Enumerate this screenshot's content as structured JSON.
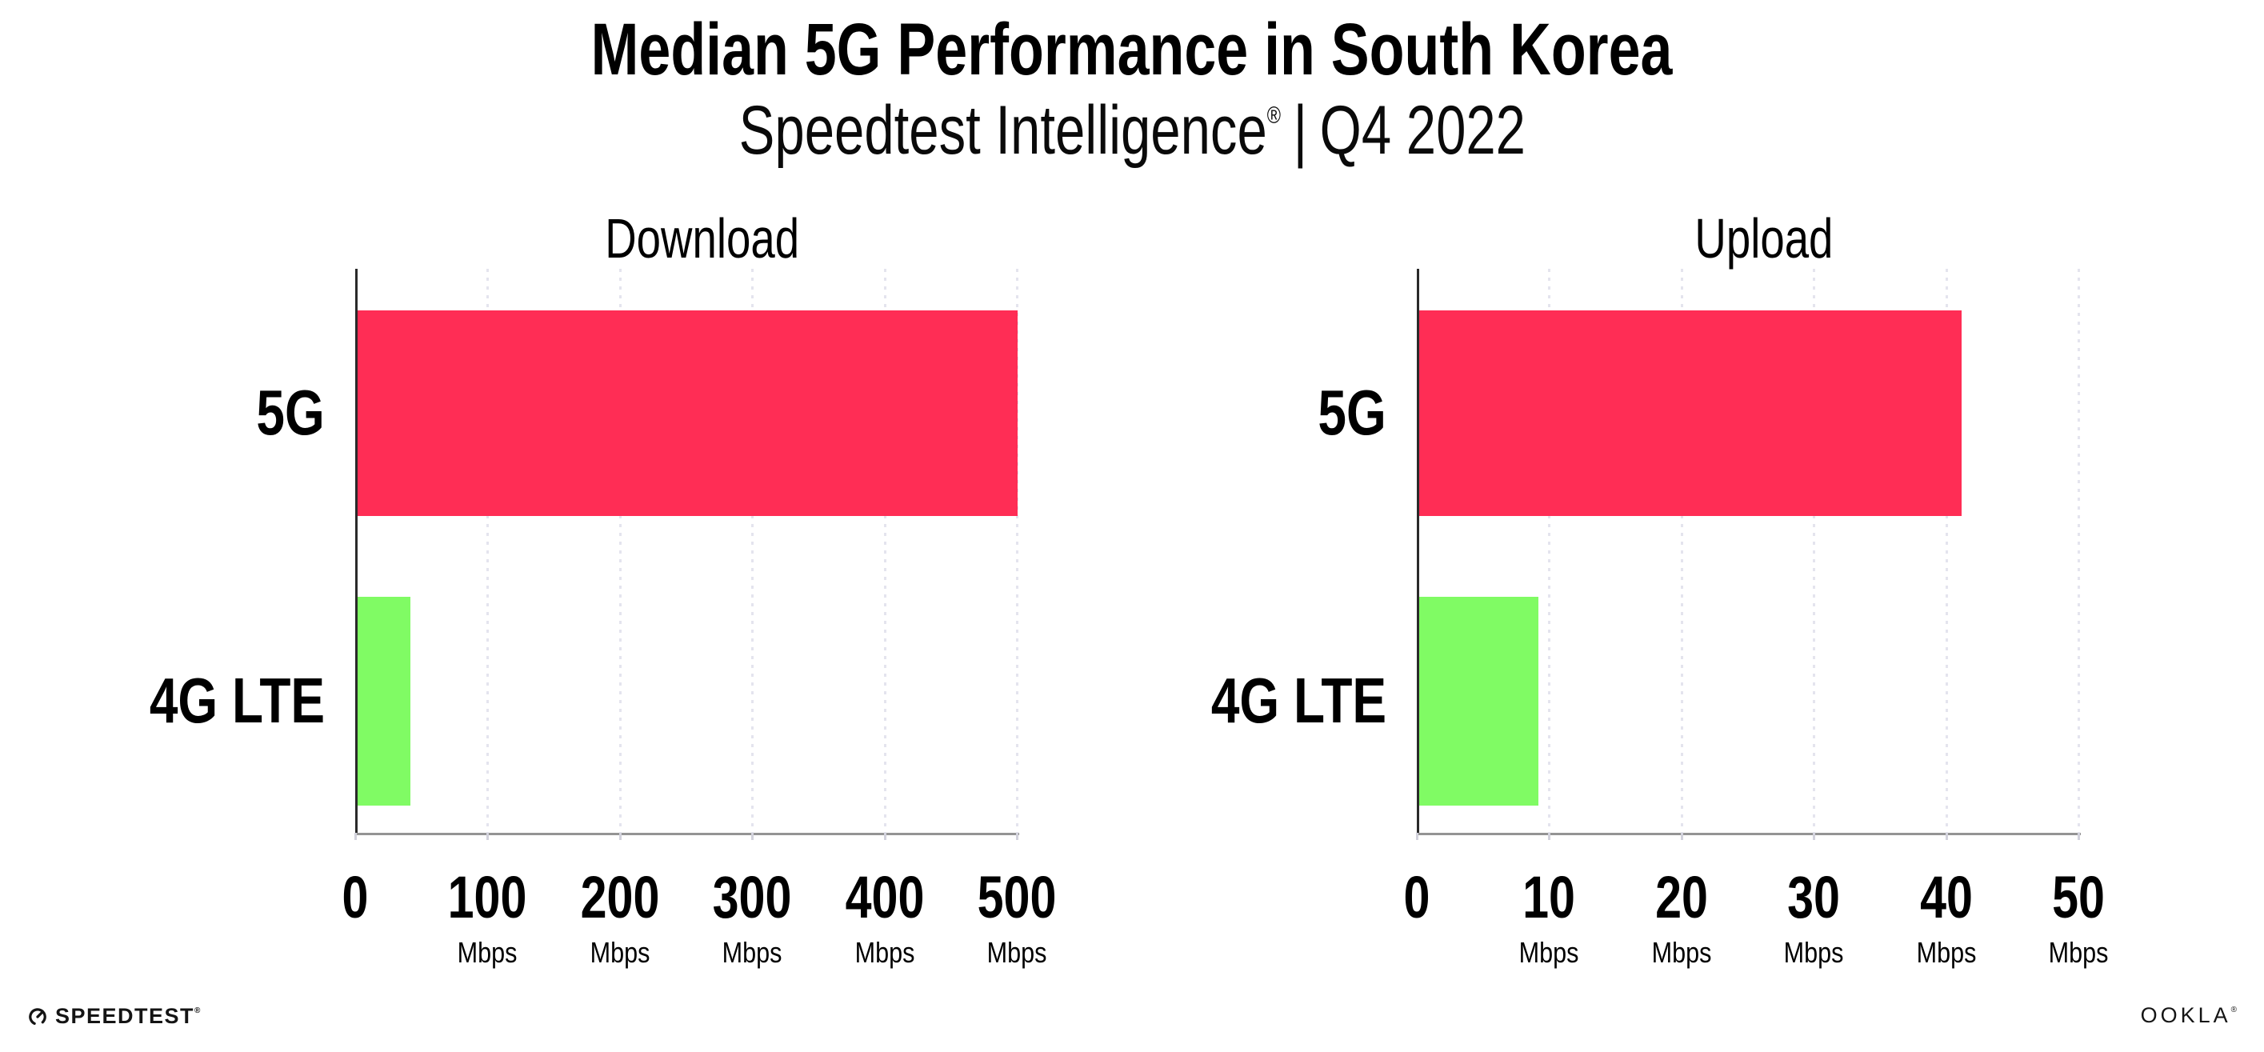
{
  "header": {
    "title": "Median 5G Performance in South Korea",
    "subtitle_brand": "Speedtest Intelligence",
    "subtitle_reg": "®",
    "subtitle_separator": "|",
    "subtitle_period": "Q4 2022"
  },
  "chart_data": [
    {
      "type": "bar",
      "orientation": "horizontal",
      "title": "Download",
      "categories": [
        "5G",
        "4G LTE"
      ],
      "values": [
        499,
        40
      ],
      "value_unit": "Mbps",
      "xlim": [
        0,
        500
      ],
      "xticks": [
        0,
        100,
        200,
        300,
        400,
        500
      ],
      "xtick_unit": "Mbps",
      "bar_colors": [
        "#FF2D55",
        "#80FB64"
      ],
      "grid": "vertical-dotted",
      "legend": "none"
    },
    {
      "type": "bar",
      "orientation": "horizontal",
      "title": "Upload",
      "categories": [
        "5G",
        "4G LTE"
      ],
      "values": [
        41,
        9
      ],
      "value_unit": "Mbps",
      "xlim": [
        0,
        50
      ],
      "xticks": [
        0,
        10,
        20,
        30,
        40,
        50
      ],
      "xtick_unit": "Mbps",
      "bar_colors": [
        "#FF2D55",
        "#80FB64"
      ],
      "grid": "vertical-dotted",
      "legend": "none"
    }
  ],
  "footer": {
    "speedtest_label": "SPEEDTEST",
    "speedtest_reg": "®",
    "ookla_label": "OOKLA",
    "ookla_reg": "®"
  },
  "colors": {
    "background": "#FFFFFF",
    "bar_5g": "#FF2D55",
    "bar_4g_lte": "#80FB64",
    "grid": "#E4E4EE",
    "axis_left": "#2A2A2A",
    "axis_bottom": "#949494",
    "text": "#000000"
  }
}
